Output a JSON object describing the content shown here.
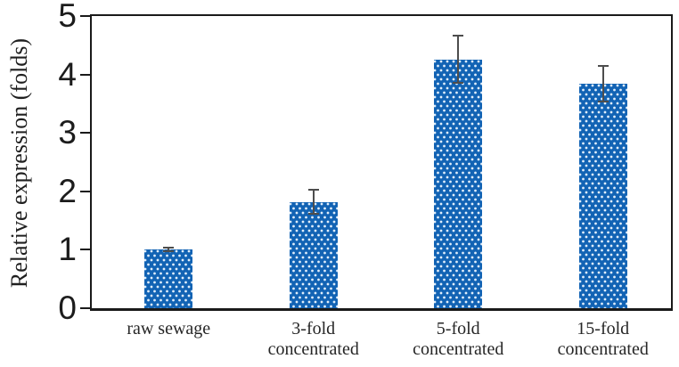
{
  "chart_data": {
    "type": "bar",
    "title": "",
    "xlabel": "",
    "ylabel": "Relative expression (folds)",
    "ylim": [
      0,
      5
    ],
    "yticks": [
      0,
      1,
      2,
      3,
      4,
      5
    ],
    "grid": false,
    "legend": null,
    "categories": [
      "raw sewage",
      "3-fold concentrated",
      "5-fold concentrated",
      "15-fold concentrated"
    ],
    "category_lines": [
      [
        "raw sewage"
      ],
      [
        "3-fold",
        "concentrated"
      ],
      [
        "5-fold",
        "concentrated"
      ],
      [
        "15-fold",
        "concentrated"
      ]
    ],
    "values": [
      1.0,
      1.82,
      4.26,
      3.84
    ],
    "errors": [
      0.03,
      0.21,
      0.41,
      0.3
    ],
    "bar_fill_color": "#1263b4",
    "bar_pattern": "light dotted grid",
    "error_bar_color": "#4d4d4d",
    "axis_color": "#1a1a1a",
    "text_color": "#262626"
  }
}
